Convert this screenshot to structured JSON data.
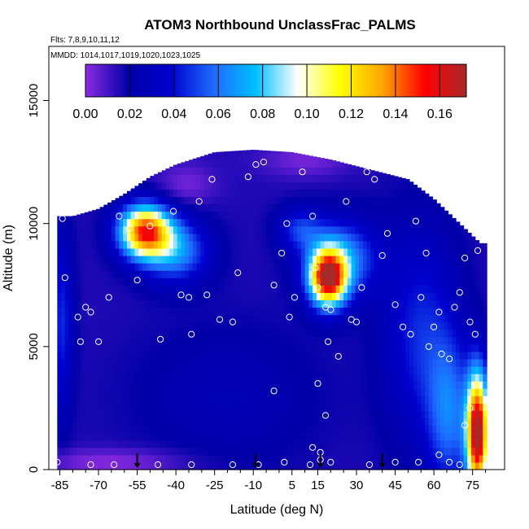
{
  "chart_data": {
    "type": "heatmap",
    "title": "ATOM3 Northbound UnclassFrac_PALMS",
    "flights_note": "Flts: 7,8,9,10,11,12",
    "dates_note": "MMDD: 1014,1017,1019,1020,1023,1025",
    "xlabel": "Latitude (deg N)",
    "ylabel": "Altitude (m)",
    "xlim": [
      -88,
      83
    ],
    "ylim": [
      0,
      17200
    ],
    "x_ticks": [
      -85,
      -70,
      -55,
      -40,
      -25,
      -10,
      5,
      15,
      30,
      45,
      60,
      75
    ],
    "x_tick_labels": [
      "-85",
      "-70",
      "-55",
      "-40",
      "-25",
      "-10",
      "5",
      "15",
      "30",
      "45",
      "60",
      "75"
    ],
    "y_ticks": [
      0,
      5000,
      10000,
      15000
    ],
    "y_tick_labels": [
      "0",
      "5000",
      "10000",
      "15000"
    ],
    "colorbar": {
      "min": 0.0,
      "max": 0.172,
      "ticks": [
        0.0,
        0.02,
        0.04,
        0.06,
        0.08,
        0.1,
        0.12,
        0.14,
        0.16
      ],
      "tick_labels": [
        "0.00",
        "0.02",
        "0.04",
        "0.06",
        "0.08",
        "0.10",
        "0.12",
        "0.14",
        "0.16"
      ],
      "colors": [
        "#8a2be2",
        "#0000a8",
        "#0000cd",
        "#1e6aff",
        "#00bfff",
        "#ffffff",
        "#ffff00",
        "#ffa500",
        "#ff0000",
        "#a52a2a"
      ]
    },
    "coverage": [
      {
        "lat": -86,
        "alt_min": 0,
        "alt_max": 10300
      },
      {
        "lat": -80,
        "alt_min": 0,
        "alt_max": 10300
      },
      {
        "lat": -70,
        "alt_min": 0,
        "alt_max": 10600
      },
      {
        "lat": -60,
        "alt_min": 0,
        "alt_max": 11200
      },
      {
        "lat": -50,
        "alt_min": 0,
        "alt_max": 11900
      },
      {
        "lat": -40,
        "alt_min": 0,
        "alt_max": 12400
      },
      {
        "lat": -25,
        "alt_min": 0,
        "alt_max": 12900
      },
      {
        "lat": -10,
        "alt_min": 0,
        "alt_max": 13000
      },
      {
        "lat": 5,
        "alt_min": 0,
        "alt_max": 12900
      },
      {
        "lat": 20,
        "alt_min": 0,
        "alt_max": 12600
      },
      {
        "lat": 35,
        "alt_min": 0,
        "alt_max": 12200
      },
      {
        "lat": 50,
        "alt_min": 0,
        "alt_max": 11800
      },
      {
        "lat": 60,
        "alt_min": 0,
        "alt_max": 11000
      },
      {
        "lat": 70,
        "alt_min": 0,
        "alt_max": 10000
      },
      {
        "lat": 78,
        "alt_min": 0,
        "alt_max": 9200
      }
    ],
    "background_value": 0.015,
    "field_features": [
      {
        "lat": -52,
        "alt": 9700,
        "sx": 7,
        "sy": 750,
        "amp": 0.13
      },
      {
        "lat": -40,
        "alt": 8900,
        "sx": 9,
        "sy": 900,
        "amp": 0.05
      },
      {
        "lat": 19,
        "alt": 7800,
        "sx": 5,
        "sy": 800,
        "amp": 0.14
      },
      {
        "lat": 24,
        "alt": 8600,
        "sx": 10,
        "sy": 1100,
        "amp": 0.05
      },
      {
        "lat": 77,
        "alt": 1500,
        "sx": 3,
        "sy": 1700,
        "amp": 0.16
      },
      {
        "lat": 66,
        "alt": 2200,
        "sx": 6,
        "sy": 2200,
        "amp": 0.04
      },
      {
        "lat": 55,
        "alt": 5500,
        "sx": 10,
        "sy": 3000,
        "amp": 0.03
      },
      {
        "lat": -84,
        "alt": 6000,
        "sx": 3,
        "sy": 2500,
        "amp": 0.03
      },
      {
        "lat": -20,
        "alt": 3000,
        "sx": 25,
        "sy": 2000,
        "amp": 0.01
      },
      {
        "lat": 8,
        "alt": 9800,
        "sx": 6,
        "sy": 600,
        "amp": 0.03
      }
    ],
    "low_features": [
      {
        "lat": -65,
        "alt": 300,
        "sx": 20,
        "sy": 400,
        "amp": 0.015
      },
      {
        "lat": -36,
        "alt": 11600,
        "sx": 8,
        "sy": 600,
        "amp": 0.012
      },
      {
        "lat": 10,
        "alt": 12600,
        "sx": 12,
        "sy": 500,
        "amp": 0.012
      }
    ],
    "sample_points": [
      [
        -84,
        10200
      ],
      [
        -83,
        7800
      ],
      [
        -78,
        6200
      ],
      [
        -75,
        6600
      ],
      [
        -73,
        6400
      ],
      [
        -77,
        5200
      ],
      [
        -66,
        7000
      ],
      [
        -70,
        5200
      ],
      [
        -62,
        10300
      ],
      [
        -58,
        9800
      ],
      [
        -55,
        7700
      ],
      [
        -50,
        9900
      ],
      [
        -46,
        5300
      ],
      [
        -38,
        7100
      ],
      [
        -35,
        7000
      ],
      [
        -34,
        5500
      ],
      [
        -41,
        10500
      ],
      [
        -31,
        10900
      ],
      [
        -28,
        7100
      ],
      [
        -26,
        11800
      ],
      [
        -23,
        6100
      ],
      [
        -18,
        6000
      ],
      [
        -16,
        8000
      ],
      [
        -12,
        11900
      ],
      [
        -9,
        12400
      ],
      [
        -6,
        12500
      ],
      [
        -3,
        13200
      ],
      [
        -2,
        7500
      ],
      [
        1,
        8800
      ],
      [
        4,
        6200
      ],
      [
        6,
        7000
      ],
      [
        3,
        10000
      ],
      [
        9,
        12100
      ],
      [
        13,
        10300
      ],
      [
        14,
        8200
      ],
      [
        15,
        7400
      ],
      [
        16,
        12900
      ],
      [
        20,
        6500
      ],
      [
        18,
        6600
      ],
      [
        19,
        5200
      ],
      [
        23,
        4600
      ],
      [
        26,
        10900
      ],
      [
        28,
        6100
      ],
      [
        30,
        6000
      ],
      [
        32,
        7400
      ],
      [
        34,
        12100
      ],
      [
        37,
        11800
      ],
      [
        40,
        8700
      ],
      [
        42,
        9600
      ],
      [
        45,
        6700
      ],
      [
        48,
        5800
      ],
      [
        51,
        5500
      ],
      [
        53,
        10100
      ],
      [
        55,
        7000
      ],
      [
        57,
        8800
      ],
      [
        58,
        5000
      ],
      [
        60,
        5800
      ],
      [
        62,
        6400
      ],
      [
        63,
        4700
      ],
      [
        66,
        4500
      ],
      [
        68,
        6600
      ],
      [
        70,
        7200
      ],
      [
        72,
        8600
      ],
      [
        74,
        6000
      ],
      [
        76,
        5500
      ],
      [
        77,
        8900
      ],
      [
        60,
        12000
      ],
      [
        64,
        11200
      ],
      [
        70,
        10300
      ],
      [
        -2,
        3200
      ],
      [
        15,
        3500
      ],
      [
        18,
        2200
      ],
      [
        16,
        400
      ],
      [
        16,
        700
      ],
      [
        13,
        900
      ],
      [
        -73,
        200
      ],
      [
        -64,
        200
      ],
      [
        -47,
        200
      ],
      [
        -34,
        200
      ],
      [
        -18,
        200
      ],
      [
        -8,
        200
      ],
      [
        2,
        300
      ],
      [
        12,
        200
      ],
      [
        20,
        300
      ],
      [
        35,
        200
      ],
      [
        45,
        300
      ],
      [
        54,
        300
      ],
      [
        62,
        600
      ],
      [
        66,
        300
      ],
      [
        70,
        200
      ],
      [
        -86,
        300
      ],
      [
        74,
        2500
      ],
      [
        72,
        1800
      ]
    ],
    "flight_markers_lat": [
      -55,
      -9,
      16,
      40
    ]
  }
}
